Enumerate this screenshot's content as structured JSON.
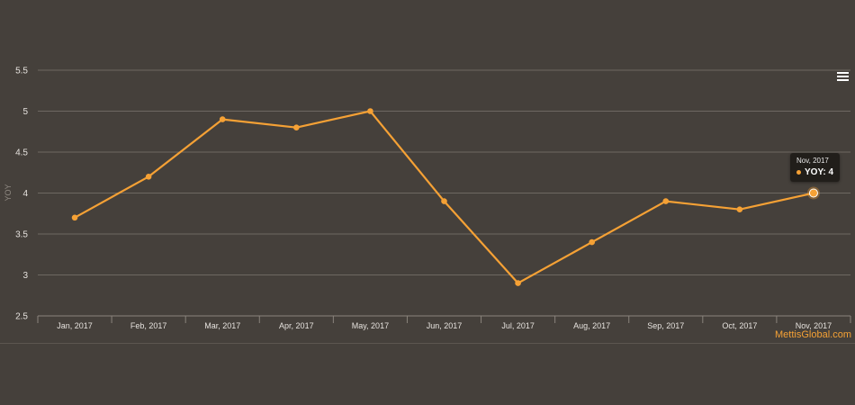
{
  "chart_data": {
    "type": "line",
    "title": "",
    "xlabel": "",
    "ylabel": "YOY",
    "ylim": [
      2.5,
      5.5
    ],
    "yticks": [
      "2.5",
      "3",
      "3.5",
      "4",
      "4.5",
      "5",
      "5.5"
    ],
    "categories": [
      "Jan, 2017",
      "Feb, 2017",
      "Mar, 2017",
      "Apr, 2017",
      "May, 2017",
      "Jun, 2017",
      "Jul, 2017",
      "Aug, 2017",
      "Sep, 2017",
      "Oct, 2017",
      "Nov, 2017"
    ],
    "series": [
      {
        "name": "YOY",
        "color": "#f5a135",
        "values": [
          3.7,
          4.2,
          4.9,
          4.8,
          5.0,
          3.9,
          2.9,
          3.4,
          3.9,
          3.8,
          4.0
        ]
      }
    ],
    "grid": true,
    "legend": "none"
  },
  "tooltip": {
    "header": "Nov, 2017",
    "label": "YOY: 4",
    "point_index": 10
  },
  "credits": {
    "text": "MettisGlobal.com"
  },
  "menu": {
    "icon": "hamburger-menu-icon"
  }
}
